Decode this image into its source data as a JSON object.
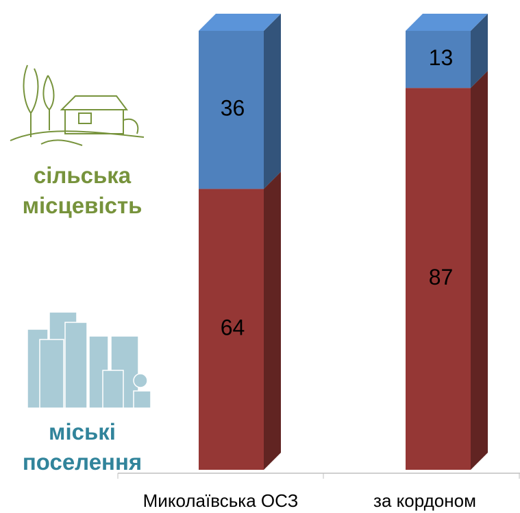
{
  "chart_data": {
    "type": "stacked-bar-3d",
    "categories": [
      "Миколаївська ОСЗ",
      "за кордоном"
    ],
    "series": [
      {
        "name": "міські поселення",
        "color": "#953735",
        "values": [
          64,
          87
        ]
      },
      {
        "name": "сільська місцевість",
        "color": "#4f81bd",
        "values": [
          36,
          13
        ]
      }
    ]
  }
}
